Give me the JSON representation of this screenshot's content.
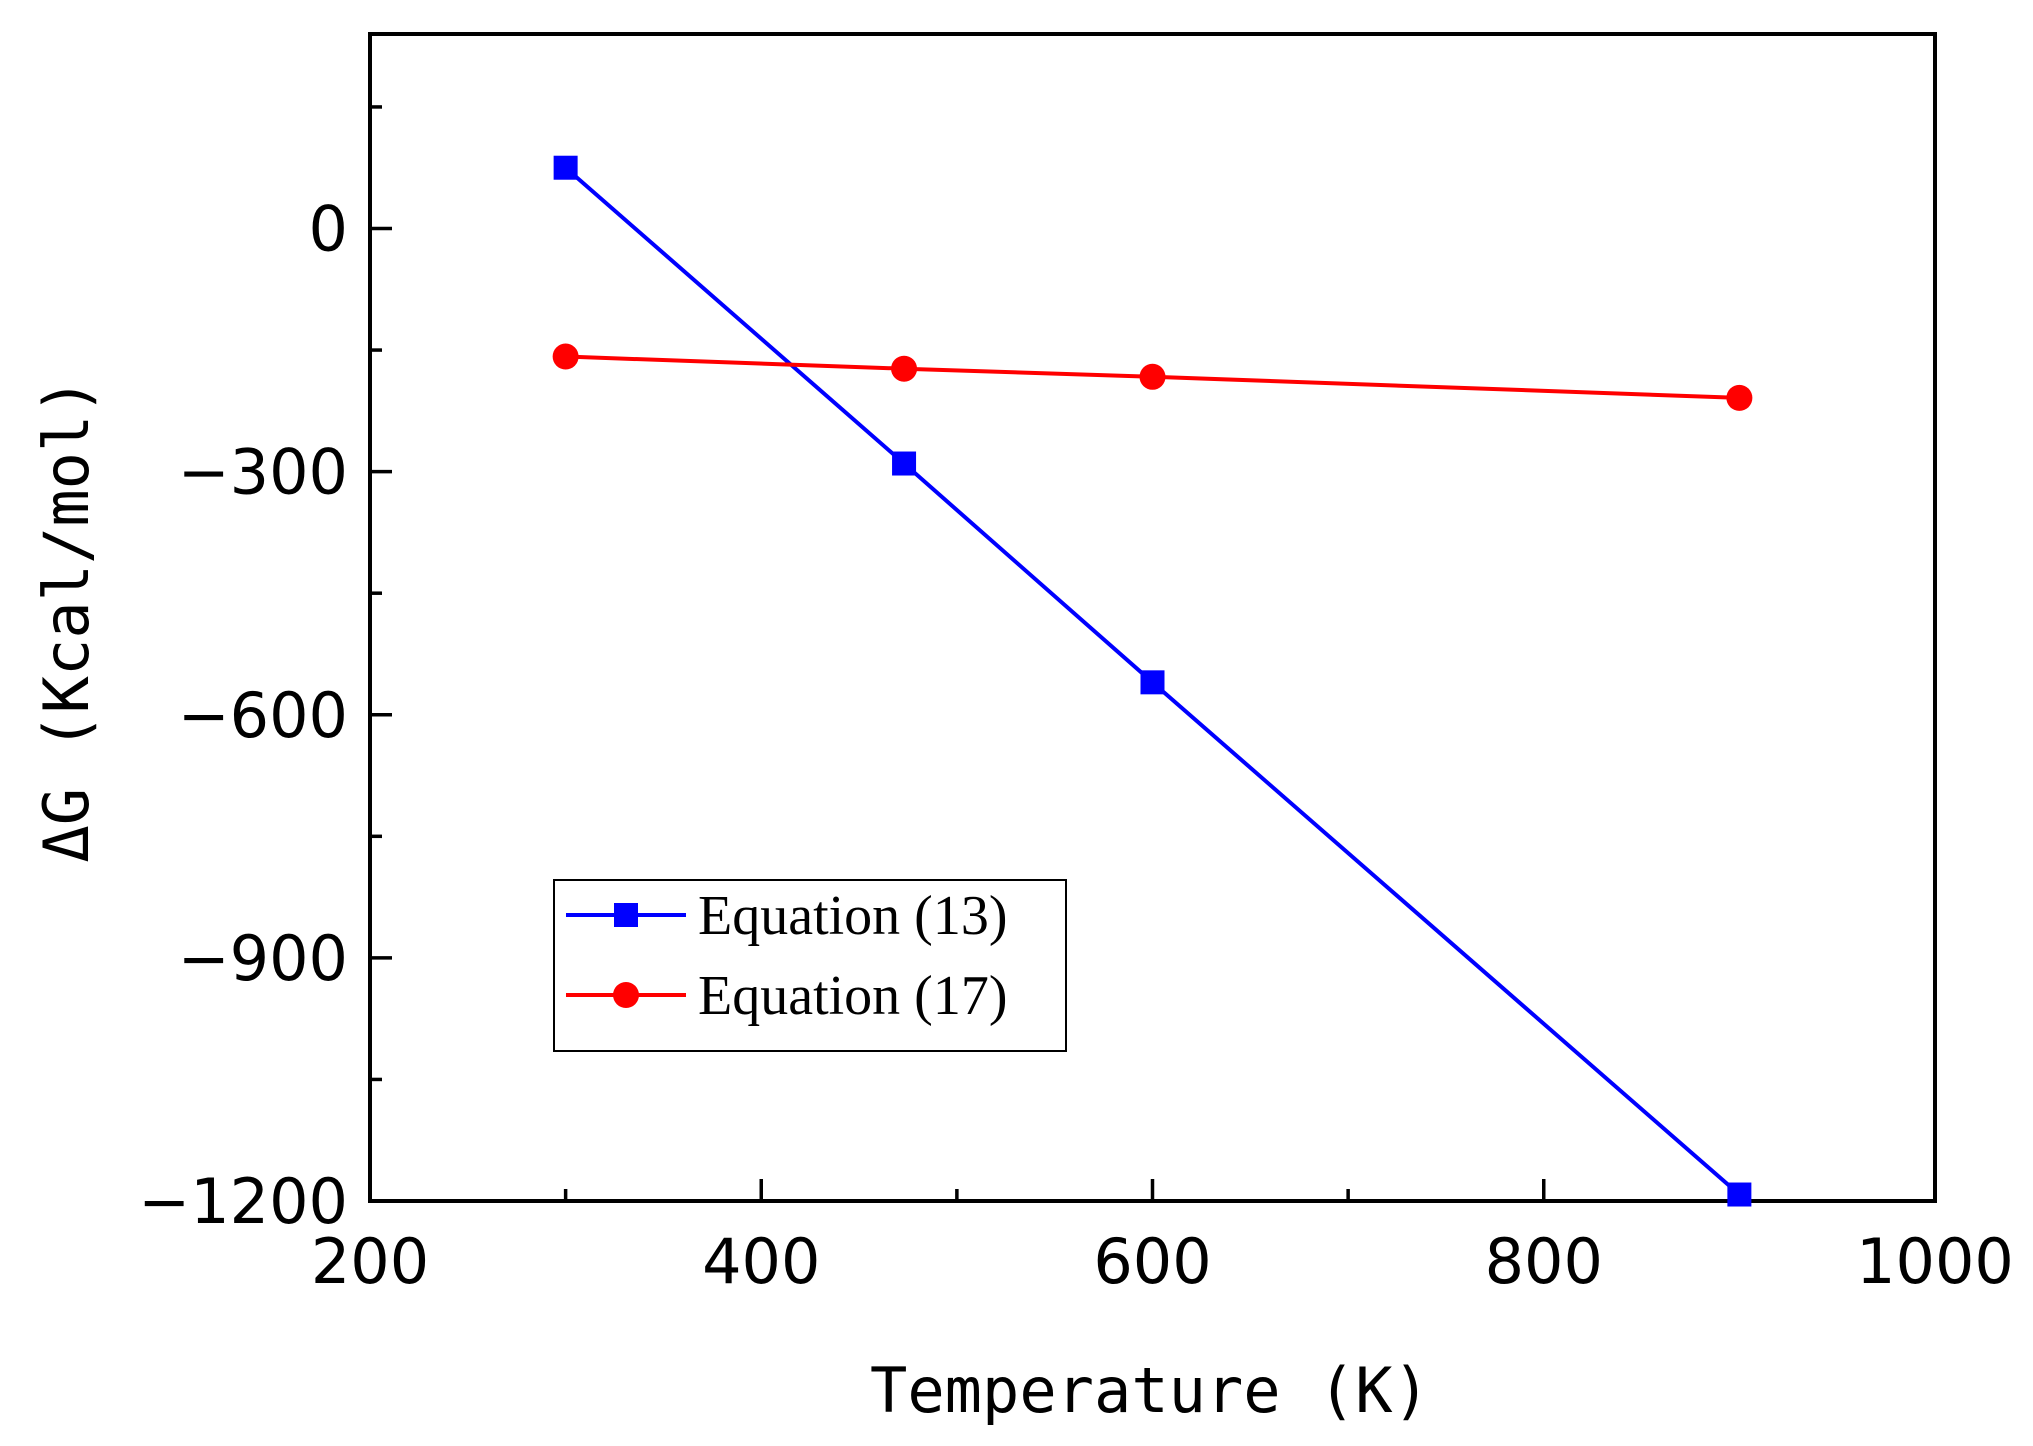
{
  "chart_data": {
    "type": "line",
    "title": "",
    "xlabel": "Temperature (K)",
    "ylabel": "ΔG (Kcal/mol)",
    "xlim": [
      200,
      1000
    ],
    "ylim": [
      -1200,
      240
    ],
    "x_ticks": [
      200,
      400,
      600,
      800,
      1000
    ],
    "x_tick_labels": [
      "200",
      "400",
      "600",
      "800",
      "1000"
    ],
    "y_ticks": [
      0,
      -300,
      -600,
      -900,
      -1200
    ],
    "y_tick_labels": [
      "0",
      "−300",
      "−600",
      "−900",
      "−1200"
    ],
    "grid": false,
    "legend_position": "lower-left",
    "series": [
      {
        "name": "Equation (13)",
        "color": "#0000ff",
        "marker": "square",
        "x": [
          300,
          473,
          600,
          900
        ],
        "y": [
          75,
          -290,
          -560,
          -1192
        ]
      },
      {
        "name": "Equation (17)",
        "color": "#ff0000",
        "marker": "circle",
        "x": [
          300,
          473,
          600,
          900
        ],
        "y": [
          -158,
          -173,
          -183,
          -209
        ]
      }
    ]
  }
}
